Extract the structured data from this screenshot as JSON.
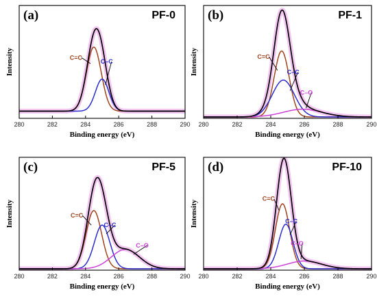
{
  "chart_data": [
    {
      "type": "line",
      "panel": "(a)",
      "title": "PF-0",
      "xlabel": "Binding energy (eV)",
      "ylabel": "Intensity",
      "xlim": [
        280,
        290
      ],
      "ylim": [
        0,
        1.05
      ],
      "xticks": [
        "280",
        "282",
        "284",
        "286",
        "288",
        "290"
      ],
      "grid": false,
      "baseline": 0.06,
      "peaks": [
        {
          "label": "C=C",
          "center": 284.5,
          "height": 0.66,
          "fwhm": 1.05,
          "color": "#a0421c"
        },
        {
          "label": "C–C",
          "center": 285.0,
          "height": 0.33,
          "fwhm": 0.95,
          "color": "#2a2ad0"
        }
      ],
      "annotations": [
        {
          "text": "C=C",
          "x": 283.05,
          "y": 0.59,
          "arrow_to": [
            284.3,
            0.55
          ]
        },
        {
          "text": "C–C",
          "x": 285.65,
          "y": 0.55,
          "arrow_to": [
            285.2,
            0.33
          ]
        }
      ]
    },
    {
      "type": "line",
      "panel": "(b)",
      "title": "PF-1",
      "xlabel": "Binding energy (eV)",
      "ylabel": "Intensity",
      "xlim": [
        280,
        290
      ],
      "ylim": [
        0,
        1.05
      ],
      "xticks": [
        "280",
        "282",
        "284",
        "286",
        "288",
        "290"
      ],
      "grid": false,
      "baseline": 0.0,
      "peaks": [
        {
          "label": "C=C",
          "center": 284.65,
          "height": 0.68,
          "fwhm": 1.05,
          "color": "#a0421c"
        },
        {
          "label": "C–C",
          "center": 284.75,
          "height": 0.38,
          "fwhm": 1.55,
          "color": "#2a2ad0"
        },
        {
          "label": "C–O",
          "center": 285.9,
          "height": 0.08,
          "fwhm": 2.7,
          "color": "#cc3fd8"
        }
      ],
      "annotations": [
        {
          "text": "C=C",
          "x": 283.2,
          "y": 0.6,
          "arrow_to": [
            284.4,
            0.48
          ]
        },
        {
          "text": "C–C",
          "x": 285.7,
          "y": 0.44,
          "arrow_to": [
            285.15,
            0.27
          ]
        },
        {
          "text": "C–O",
          "x": 286.5,
          "y": 0.23,
          "arrow_to": [
            286.1,
            0.09
          ]
        }
      ]
    },
    {
      "type": "line",
      "panel": "(c)",
      "title": "PF-5",
      "xlabel": "Binding energy (eV)",
      "ylabel": "Intensity",
      "xlim": [
        280,
        290
      ],
      "ylim": [
        0,
        1.05
      ],
      "xticks": [
        "280",
        "282",
        "284",
        "286",
        "288",
        "290"
      ],
      "grid": false,
      "baseline": 0.0,
      "peaks": [
        {
          "label": "C=C",
          "center": 284.5,
          "height": 0.6,
          "fwhm": 1.1,
          "color": "#a0421c"
        },
        {
          "label": "C–C",
          "center": 285.0,
          "height": 0.45,
          "fwhm": 1.1,
          "color": "#2a2ad0"
        },
        {
          "label": "C–O",
          "center": 286.4,
          "height": 0.2,
          "fwhm": 2.0,
          "color": "#cc3fd8"
        }
      ],
      "annotations": [
        {
          "text": "C=C",
          "x": 283.1,
          "y": 0.53,
          "arrow_to": [
            284.35,
            0.45
          ]
        },
        {
          "text": "C–C",
          "x": 285.85,
          "y": 0.43,
          "arrow_to": [
            285.25,
            0.36
          ]
        },
        {
          "text": "C–O",
          "x": 287.8,
          "y": 0.22,
          "arrow_to": [
            286.9,
            0.15
          ]
        }
      ]
    },
    {
      "type": "line",
      "panel": "(d)",
      "title": "PF-10",
      "xlabel": "Binding energy (eV)",
      "ylabel": "Intensity",
      "xlim": [
        280,
        290
      ],
      "ylim": [
        0,
        1.05
      ],
      "xticks": [
        "280",
        "282",
        "284",
        "286",
        "288",
        "290"
      ],
      "grid": false,
      "baseline": 0.0,
      "peaks": [
        {
          "label": "C=C",
          "center": 284.7,
          "height": 0.67,
          "fwhm": 1.0,
          "color": "#a0421c"
        },
        {
          "label": "C–C",
          "center": 284.9,
          "height": 0.46,
          "fwhm": 1.0,
          "color": "#2a2ad0"
        },
        {
          "label": "C–O",
          "center": 286.0,
          "height": 0.08,
          "fwhm": 2.4,
          "color": "#cc3fd8"
        }
      ],
      "annotations": [
        {
          "text": "C=C",
          "x": 283.5,
          "y": 0.7,
          "arrow_to": [
            284.5,
            0.6
          ]
        },
        {
          "text": "C–C",
          "x": 285.6,
          "y": 0.47,
          "arrow_to": [
            285.15,
            0.35
          ]
        },
        {
          "text": "C–O",
          "x": 285.95,
          "y": 0.24,
          "arrow_to": [
            285.8,
            0.1
          ]
        }
      ]
    }
  ],
  "colors": {
    "envelope": "#000000",
    "envelope_glow": "#f2b4ef",
    "frame": "#000000"
  }
}
